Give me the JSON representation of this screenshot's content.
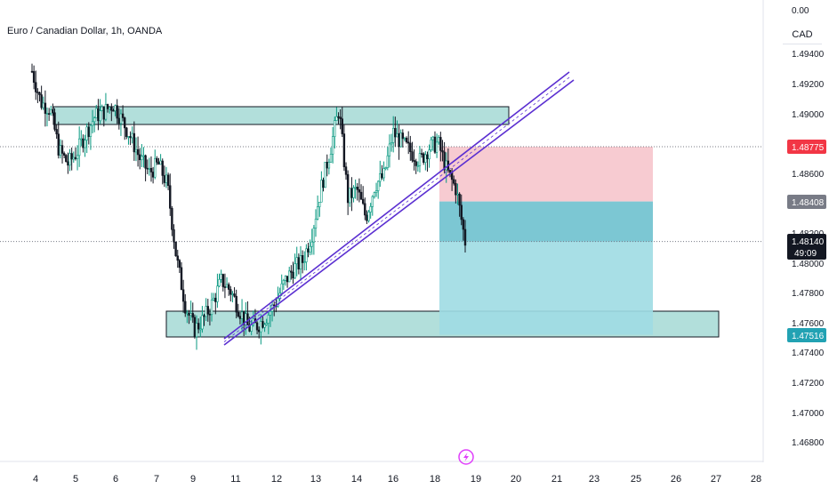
{
  "header": {
    "symbol_title": "Euro / Canadian Dollar, 1h, OANDA",
    "currency": "CAD"
  },
  "chart_data": {
    "type": "candlestick",
    "title": "Euro / Canadian Dollar, 1h, OANDA",
    "y_axis": {
      "ticks": [
        "0.00",
        "1.49400",
        "1.49200",
        "1.49000",
        "1.48600",
        "1.48200",
        "1.48000",
        "1.47800",
        "1.47600",
        "1.47400",
        "1.47200",
        "1.47000",
        "1.46800"
      ],
      "range": [
        1.4675,
        1.4952
      ]
    },
    "x_axis": {
      "ticks": [
        "4",
        "5",
        "6",
        "7",
        "9",
        "11",
        "12",
        "13",
        "14",
        "16",
        "18",
        "19",
        "20",
        "21",
        "23",
        "25",
        "26",
        "27",
        "28"
      ]
    },
    "price_labels": [
      {
        "name": "stop",
        "value": "1.48775",
        "color": "#f23645"
      },
      {
        "name": "entry",
        "value": "1.48408",
        "color": "#787b86"
      },
      {
        "name": "current",
        "value": "1.48140",
        "countdown": "49:09",
        "color": "#131722"
      },
      {
        "name": "target",
        "value": "1.47516",
        "color": "#22a2b3"
      }
    ],
    "price": [
      1.4928,
      1.4907,
      1.4903,
      1.4875,
      1.4866,
      1.4874,
      1.4887,
      1.4898,
      1.4901,
      1.4906,
      1.4895,
      1.4883,
      1.4869,
      1.486,
      1.4866,
      1.4852,
      1.4803,
      1.4771,
      1.4755,
      1.4762,
      1.4773,
      1.4788,
      1.4781,
      1.4768,
      1.4756,
      1.4758,
      1.4764,
      1.4773,
      1.4787,
      1.4796,
      1.4801,
      1.4819,
      1.4849,
      1.4874,
      1.4903,
      1.4843,
      1.4849,
      1.483,
      1.4852,
      1.4858,
      1.4887,
      1.488,
      1.4874,
      1.4868,
      1.4877,
      1.488,
      1.4861,
      1.4849,
      1.4814
    ],
    "annotations": [
      {
        "type": "supply-zone",
        "color": "#b2dfdb"
      },
      {
        "type": "demand-zone",
        "color": "#b2dfdb"
      },
      {
        "type": "ascending-channel",
        "color": "#5b2fd1"
      },
      {
        "type": "short-position",
        "stop": 1.48775,
        "entry": 1.48408,
        "target": 1.47516
      }
    ],
    "grid": false,
    "legend": "none"
  },
  "icons": {
    "lightning": "lightning-icon"
  }
}
